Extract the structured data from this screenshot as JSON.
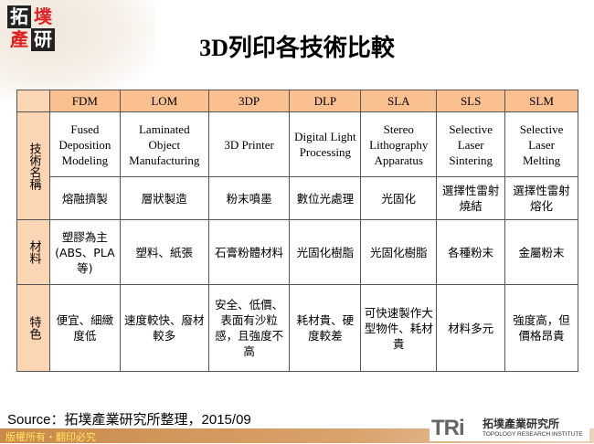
{
  "logo": {
    "chars": [
      "拓",
      "墣",
      "產",
      "研"
    ]
  },
  "title": "3D列印各技術比較",
  "table": {
    "headers": [
      "FDM",
      "LOM",
      "3DP",
      "DLP",
      "SLA",
      "SLS",
      "SLM"
    ],
    "row_labels": {
      "name": "技術名稱",
      "material": "材料",
      "feature": "特色"
    },
    "english_names": [
      "Fused Deposition Modeling",
      "Laminated Object Manufacturing",
      "3D Printer",
      "Digital Light Processing",
      "Stereo Lithography Apparatus",
      "Selective Laser Sintering",
      "Selective Laser Melting"
    ],
    "chinese_names": [
      "熔融擠製",
      "層狀製造",
      "粉末噴墨",
      "數位光處理",
      "光固化",
      "選擇性雷射燒結",
      "選擇性雷射熔化"
    ],
    "materials": [
      "塑膠為主(ABS、PLA等)",
      "塑料、紙張",
      "石膏粉體材料",
      "光固化樹脂",
      "光固化樹脂",
      "各種粉末",
      "金屬粉末"
    ],
    "features": [
      "便宜、細緻度低",
      "速度較快、廢材較多",
      "安全、低價、表面有沙粒感，且強度不高",
      "耗材貴、硬度較差",
      "可快速製作大型物件、耗材貴",
      "材料多元",
      "強度高，但價格昂貴"
    ]
  },
  "source": "Source：拓墣產業研究所整理，2015/09",
  "footer": "版權所有・翻印必究",
  "brand": {
    "mark": "TRi",
    "cn": "拓墣產業研究所",
    "en": "TOPOLOGY RESEARCH INSTITUTE"
  }
}
